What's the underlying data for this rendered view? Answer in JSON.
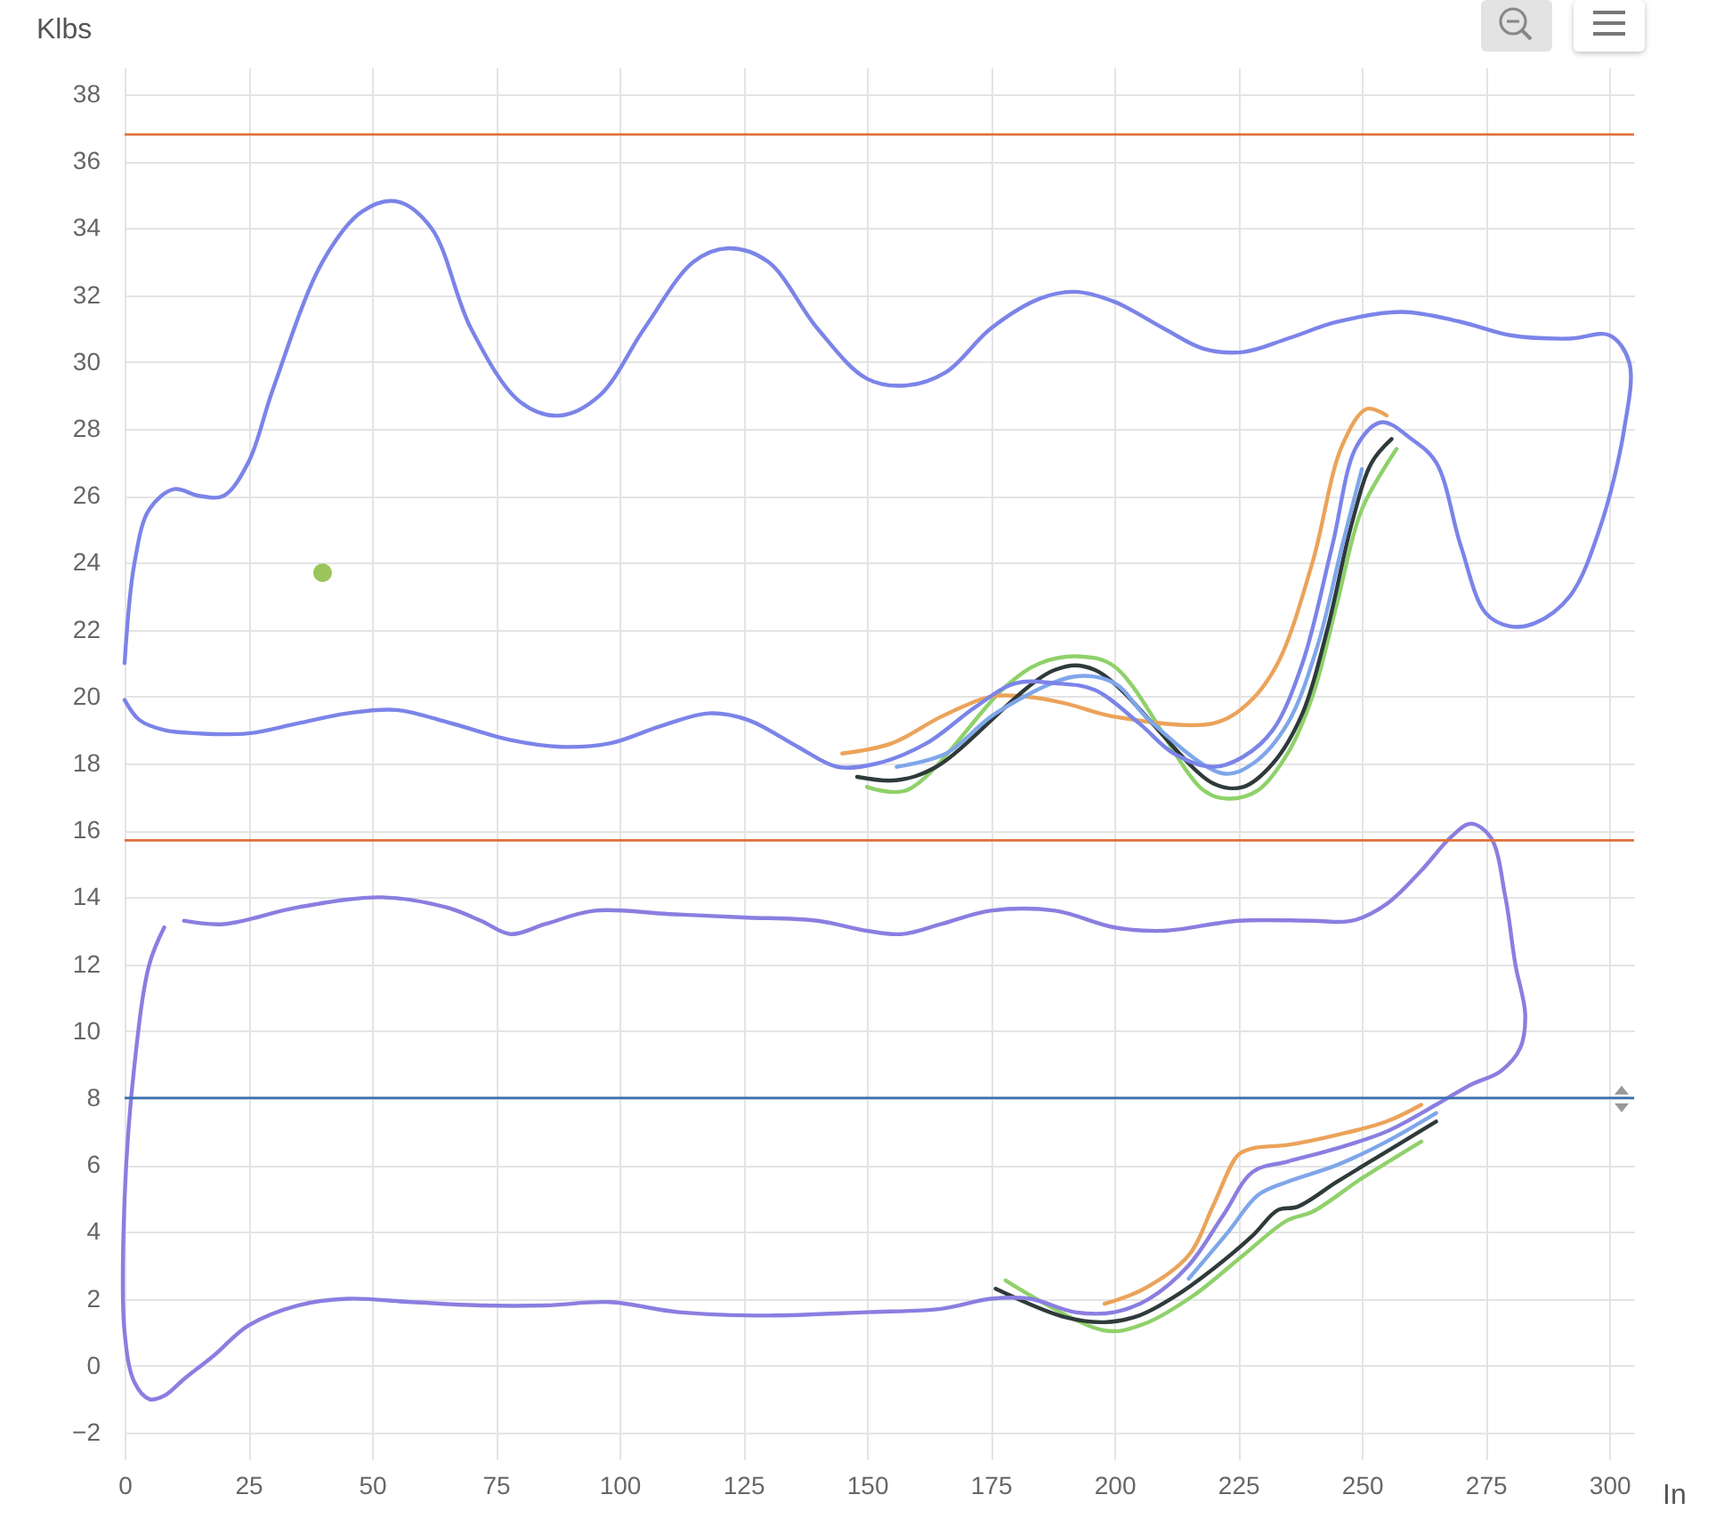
{
  "chart_data": {
    "type": "line",
    "xlabel": "In",
    "ylabel": "Klbs",
    "xlim": [
      0,
      305
    ],
    "ylim": [
      -2.8,
      38.8
    ],
    "xticks": [
      0,
      25,
      50,
      75,
      100,
      125,
      150,
      175,
      200,
      225,
      250,
      275,
      300
    ],
    "yticks": [
      -2,
      0,
      2,
      4,
      6,
      8,
      10,
      12,
      14,
      16,
      18,
      20,
      22,
      24,
      26,
      28,
      30,
      32,
      34,
      36,
      38
    ],
    "grid": true,
    "ref_lines": [
      {
        "axis": "y",
        "value": 36.8,
        "color": "#e0703c"
      },
      {
        "axis": "y",
        "value": 15.7,
        "color": "#e0703c"
      },
      {
        "axis": "y",
        "value": 8,
        "color": "#3a6fb0"
      }
    ],
    "series": [
      {
        "color": "#8fd16a",
        "x": [
          257,
          250,
          245,
          240,
          235,
          229,
          223,
          218,
          200,
          193,
          185,
          178,
          158,
          150,
          null,
          262,
          250,
          240,
          235,
          226,
          216,
          206,
          198,
          178
        ],
        "values": [
          27.4,
          25.6,
          22.8,
          20,
          18.3,
          17.2,
          16.95,
          17.2,
          20.9,
          21.2,
          21,
          20.3,
          17.2,
          17.3,
          null,
          6.7,
          5.6,
          4.6,
          4.35,
          3.3,
          2.1,
          1.25,
          1.05,
          2.55
        ]
      },
      {
        "color": "#eba35a",
        "x": [
          255,
          251,
          246,
          240,
          233,
          227,
          220,
          200,
          190,
          182,
          175,
          165,
          155,
          145,
          null,
          262,
          255,
          245,
          235,
          228,
          225,
          220,
          215,
          206,
          198
        ],
        "values": [
          28.4,
          28.6,
          27.5,
          24,
          21,
          19.8,
          19.2,
          19.4,
          19.8,
          20,
          20,
          19.4,
          18.6,
          18.3,
          null,
          7.8,
          7.3,
          6.9,
          6.6,
          6.5,
          6.3,
          4.8,
          3.3,
          2.3,
          1.85
        ]
      },
      {
        "color": "#2f3a3a",
        "x": [
          256,
          252,
          248,
          243,
          238,
          232,
          226,
          220,
          196,
          188,
          164,
          156,
          148,
          null,
          265,
          255,
          245,
          237,
          233,
          228,
          220,
          212,
          205,
          198,
          190,
          176
        ],
        "values": [
          27.7,
          27,
          25.2,
          22,
          19.5,
          18,
          17.3,
          17.4,
          20.8,
          20.8,
          17.9,
          17.5,
          17.6,
          null,
          7.3,
          6.4,
          5.5,
          4.75,
          4.65,
          3.9,
          2.9,
          2.05,
          1.5,
          1.3,
          1.45,
          2.3
        ]
      },
      {
        "color": "#7fa6ea",
        "x": [
          250,
          246,
          241,
          235,
          228,
          222,
          207,
          200,
          192,
          176,
          166,
          156,
          null,
          265,
          255,
          245,
          235,
          229,
          223,
          215
        ],
        "values": [
          26.8,
          24.5,
          21.5,
          19.2,
          18,
          17.7,
          19.3,
          20.4,
          20.6,
          19.5,
          18.3,
          17.9,
          null,
          7.55,
          6.7,
          6,
          5.5,
          5.1,
          4,
          2.6
        ]
      },
      {
        "color": "#7b84e8",
        "x": [
          0,
          2,
          5,
          10,
          15,
          20,
          25,
          30,
          40,
          48,
          55,
          62,
          70,
          80,
          88,
          96,
          105,
          115,
          122,
          130,
          140,
          150,
          158,
          166,
          175,
          185,
          192,
          200,
          210,
          218,
          226,
          235,
          245,
          258,
          270,
          280,
          292,
          300,
          304,
          303,
          298,
          292,
          285,
          280,
          275,
          270,
          265,
          260,
          254,
          249,
          244,
          238,
          232,
          226,
          220,
          212,
          205,
          196,
          188,
          180,
          172,
          162,
          152,
          144,
          136,
          126,
          118,
          108,
          98,
          88,
          78,
          66,
          55,
          45,
          35,
          25,
          15,
          8,
          3,
          0
        ],
        "values": [
          21,
          24,
          25.6,
          26.2,
          26,
          26,
          27,
          29.2,
          33,
          34.5,
          34.8,
          34,
          31,
          28.8,
          28.4,
          29,
          31,
          33,
          33.4,
          33,
          31,
          29.5,
          29.3,
          29.7,
          31,
          31.9,
          32.1,
          31.8,
          31,
          30.4,
          30.3,
          30.7,
          31.2,
          31.5,
          31.2,
          30.8,
          30.7,
          30.8,
          30,
          28,
          25,
          23,
          22.2,
          22.1,
          22.5,
          24.5,
          27,
          27.7,
          28.2,
          27.5,
          24.5,
          21,
          19,
          18.2,
          17.9,
          18.3,
          19.2,
          20.2,
          20.4,
          20.4,
          19.7,
          18.6,
          18,
          17.9,
          18.5,
          19.3,
          19.5,
          19.1,
          18.6,
          18.5,
          18.7,
          19.2,
          19.6,
          19.5,
          19.2,
          18.9,
          18.9,
          19,
          19.3,
          19.9
        ]
      },
      {
        "color": "#8a7ee0",
        "x": [
          12,
          20,
          35,
          52,
          65,
          72,
          78,
          85,
          95,
          110,
          125,
          140,
          150,
          157,
          165,
          175,
          188,
          200,
          210,
          225,
          240,
          248,
          255,
          262,
          268,
          272,
          276,
          279,
          281,
          283,
          282,
          278,
          272,
          265,
          255,
          245,
          235,
          228,
          222,
          215,
          207,
          200,
          192,
          183,
          175,
          165,
          150,
          130,
          112,
          98,
          85,
          72,
          58,
          45,
          35,
          25,
          18,
          12,
          8,
          5,
          2,
          0,
          0,
          2,
          5,
          8
        ],
        "values": [
          13.3,
          13.2,
          13.7,
          14,
          13.7,
          13.3,
          12.9,
          13.2,
          13.6,
          13.5,
          13.4,
          13.3,
          13,
          12.9,
          13.2,
          13.6,
          13.6,
          13.1,
          13,
          13.3,
          13.3,
          13.3,
          13.8,
          14.8,
          15.8,
          16.2,
          15.8,
          14,
          12,
          10.5,
          9.5,
          8.8,
          8.4,
          7.8,
          7,
          6.5,
          6.1,
          5.8,
          4.5,
          3,
          2,
          1.6,
          1.6,
          2,
          2,
          1.7,
          1.6,
          1.5,
          1.6,
          1.9,
          1.8,
          1.8,
          1.9,
          2,
          1.8,
          1.2,
          0.3,
          -0.4,
          -0.9,
          -1,
          -0.5,
          1,
          5,
          9,
          12,
          13.1
        ]
      },
      {
        "type": "scatter",
        "marker": "circle",
        "color": "#9bc45a",
        "x": [
          40
        ],
        "values": [
          23.7
        ]
      }
    ]
  }
}
